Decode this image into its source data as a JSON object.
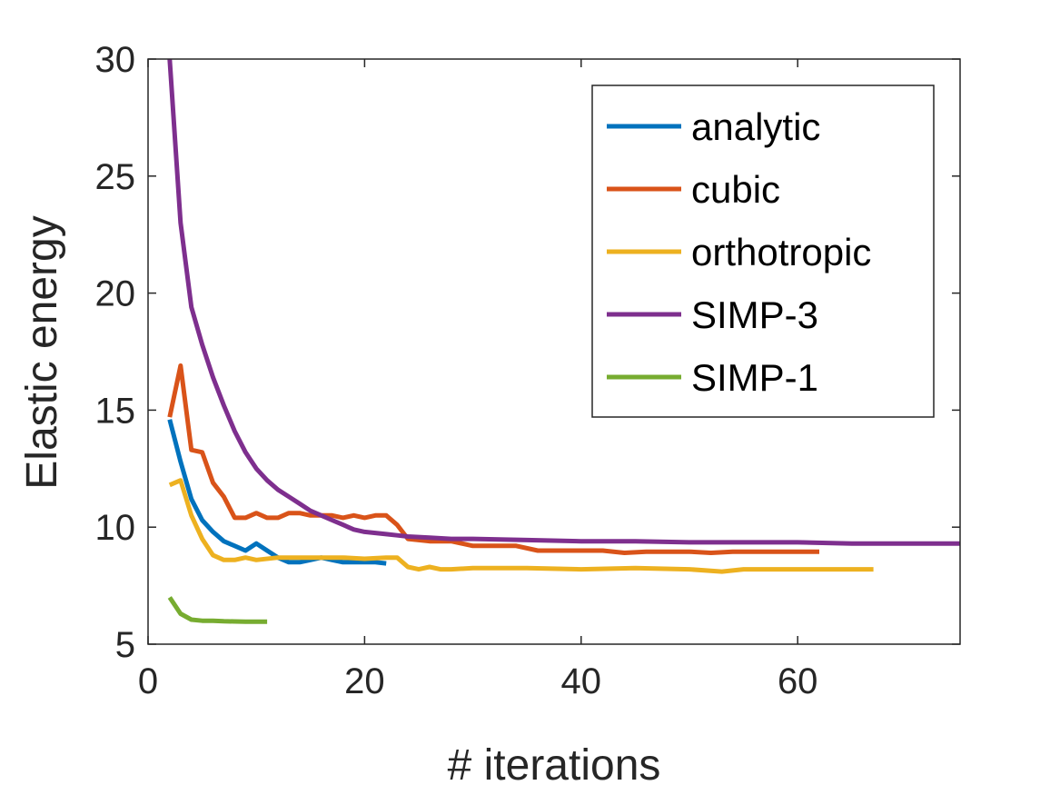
{
  "chart_data": {
    "type": "line",
    "xlabel": "# iterations",
    "ylabel": "Elastic energy",
    "xlim": [
      0,
      75
    ],
    "ylim": [
      5,
      30
    ],
    "xticks": [
      0,
      20,
      40,
      60
    ],
    "yticks": [
      5,
      10,
      15,
      20,
      25,
      30
    ],
    "grid": false,
    "legend_position": "top-right",
    "series": [
      {
        "name": "analytic",
        "color": "#0072BD",
        "x": [
          2,
          3,
          4,
          5,
          6,
          7,
          8,
          9,
          10,
          11,
          12,
          13,
          14,
          15,
          16,
          17,
          18,
          19,
          20,
          21,
          22
        ],
        "y": [
          14.6,
          12.8,
          11.2,
          10.3,
          9.8,
          9.4,
          9.2,
          9.0,
          9.3,
          9.0,
          8.7,
          8.5,
          8.5,
          8.6,
          8.7,
          8.6,
          8.5,
          8.5,
          8.5,
          8.5,
          8.45
        ]
      },
      {
        "name": "cubic",
        "color": "#D95319",
        "x": [
          2,
          3,
          4,
          5,
          6,
          7,
          8,
          9,
          10,
          11,
          12,
          13,
          14,
          15,
          16,
          17,
          18,
          19,
          20,
          21,
          22,
          23,
          24,
          26,
          28,
          30,
          32,
          34,
          36,
          38,
          40,
          42,
          44,
          46,
          48,
          50,
          52,
          54,
          56,
          58,
          60,
          62
        ],
        "y": [
          14.7,
          16.9,
          13.3,
          13.2,
          11.9,
          11.3,
          10.4,
          10.4,
          10.6,
          10.4,
          10.4,
          10.6,
          10.6,
          10.5,
          10.5,
          10.5,
          10.4,
          10.5,
          10.4,
          10.5,
          10.5,
          10.1,
          9.5,
          9.4,
          9.4,
          9.2,
          9.2,
          9.2,
          9.0,
          9.0,
          9.0,
          9.0,
          8.9,
          8.95,
          8.95,
          8.95,
          8.9,
          8.95,
          8.95,
          8.95,
          8.95,
          8.95
        ]
      },
      {
        "name": "orthotropic",
        "color": "#EDB120",
        "x": [
          2,
          3,
          4,
          5,
          6,
          7,
          8,
          9,
          10,
          12,
          14,
          16,
          18,
          20,
          22,
          23,
          24,
          25,
          26,
          27,
          28,
          30,
          35,
          40,
          45,
          50,
          53,
          55,
          60,
          67
        ],
        "y": [
          11.8,
          12.0,
          10.5,
          9.5,
          8.8,
          8.6,
          8.6,
          8.7,
          8.6,
          8.7,
          8.7,
          8.7,
          8.7,
          8.65,
          8.7,
          8.7,
          8.3,
          8.2,
          8.3,
          8.2,
          8.2,
          8.25,
          8.25,
          8.2,
          8.25,
          8.2,
          8.1,
          8.2,
          8.2,
          8.2
        ]
      },
      {
        "name": "SIMP-3",
        "color": "#7E2F8E",
        "x": [
          2,
          3,
          4,
          5,
          6,
          7,
          8,
          9,
          10,
          11,
          12,
          13,
          14,
          15,
          16,
          17,
          18,
          19,
          20,
          21,
          22,
          23,
          24,
          26,
          28,
          30,
          35,
          40,
          45,
          50,
          55,
          60,
          65,
          70,
          75
        ],
        "y": [
          30.0,
          23.0,
          19.4,
          17.8,
          16.4,
          15.2,
          14.1,
          13.2,
          12.5,
          12.0,
          11.6,
          11.3,
          11.0,
          10.7,
          10.5,
          10.3,
          10.1,
          9.9,
          9.8,
          9.75,
          9.7,
          9.65,
          9.6,
          9.55,
          9.5,
          9.5,
          9.45,
          9.4,
          9.4,
          9.35,
          9.35,
          9.35,
          9.3,
          9.3,
          9.3
        ]
      },
      {
        "name": "SIMP-1",
        "color": "#77AC30",
        "x": [
          2,
          3,
          4,
          5,
          6,
          7,
          8,
          9,
          10,
          11
        ],
        "y": [
          7.0,
          6.3,
          6.05,
          6.0,
          6.0,
          5.98,
          5.97,
          5.96,
          5.96,
          5.96
        ]
      }
    ]
  }
}
